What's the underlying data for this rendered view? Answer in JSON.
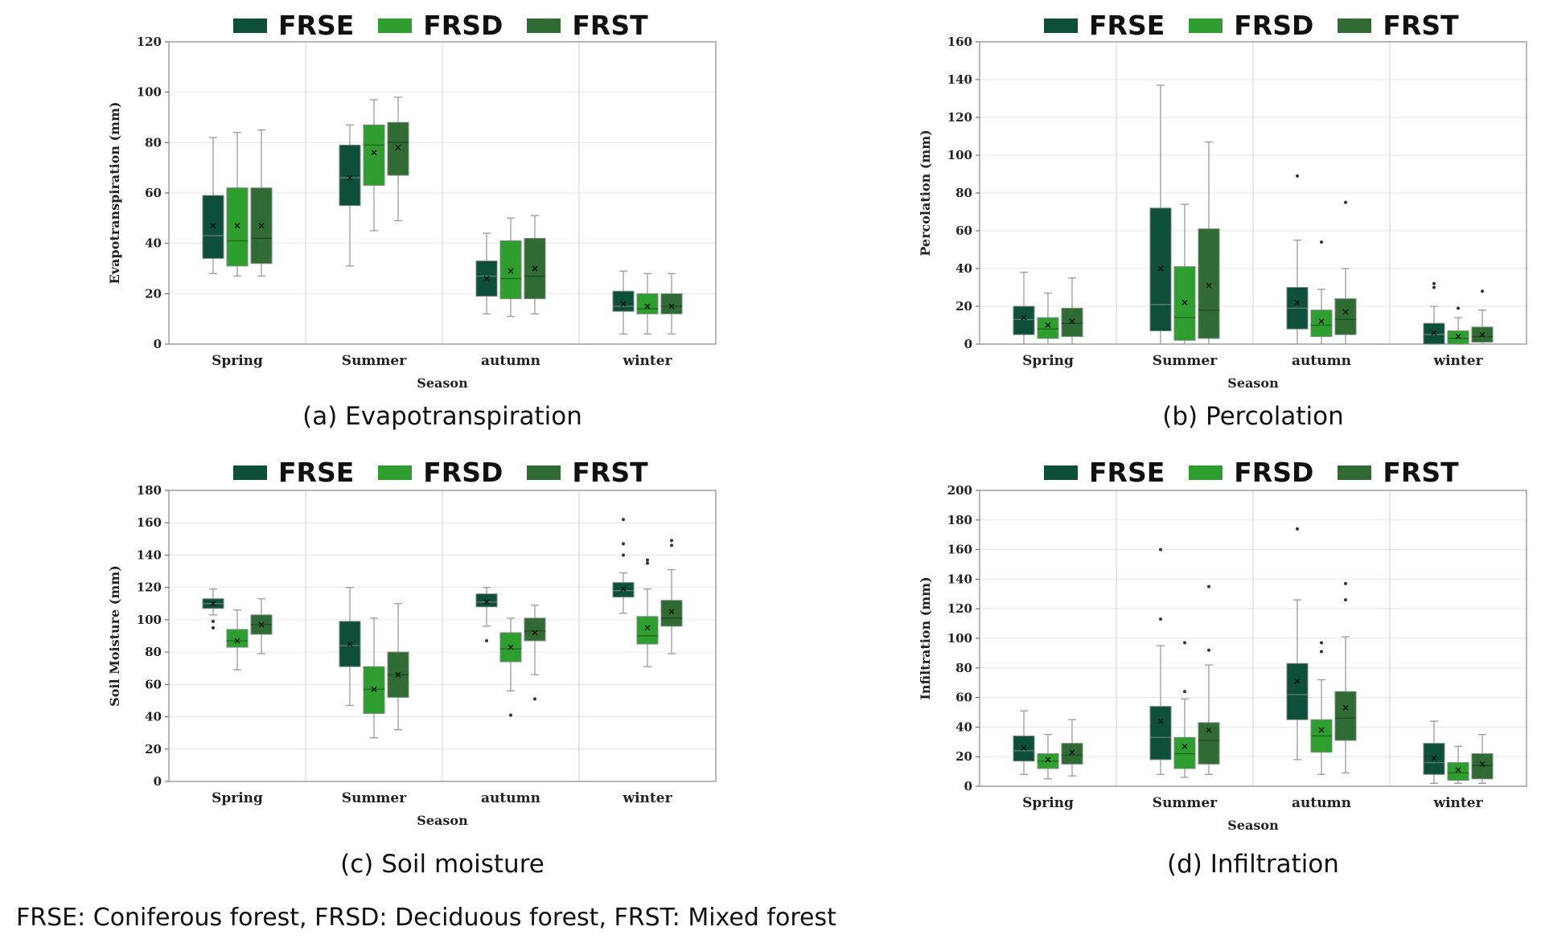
{
  "chart_data": [
    {
      "id": "a",
      "type": "box",
      "caption": "(a) Evapotranspiration",
      "ylabel": "Evapotranspiration (mm)",
      "xlabel": "Season",
      "ylim": [
        0,
        120
      ],
      "yticks": [
        0,
        20,
        40,
        60,
        80,
        100,
        120
      ],
      "categories": [
        "Spring",
        "Summer",
        "autumn",
        "winter"
      ],
      "series": [
        {
          "name": "FRSE",
          "boxes": [
            {
              "min": 28,
              "q1": 34,
              "median": 43,
              "q3": 59,
              "max": 82,
              "mean": 47,
              "outliers": []
            },
            {
              "min": 31,
              "q1": 55,
              "median": 66,
              "q3": 79,
              "max": 87,
              "mean": 66,
              "outliers": []
            },
            {
              "min": 12,
              "q1": 19,
              "median": 27,
              "q3": 33,
              "max": 44,
              "mean": 26,
              "outliers": []
            },
            {
              "min": 4,
              "q1": 13,
              "median": 15,
              "q3": 21,
              "max": 29,
              "mean": 16,
              "outliers": []
            }
          ]
        },
        {
          "name": "FRSD",
          "boxes": [
            {
              "min": 27,
              "q1": 31,
              "median": 41,
              "q3": 62,
              "max": 84,
              "mean": 47,
              "outliers": []
            },
            {
              "min": 45,
              "q1": 63,
              "median": 79,
              "q3": 87,
              "max": 97,
              "mean": 76,
              "outliers": []
            },
            {
              "min": 11,
              "q1": 18,
              "median": 26,
              "q3": 41,
              "max": 50,
              "mean": 29,
              "outliers": []
            },
            {
              "min": 4,
              "q1": 12,
              "median": 14,
              "q3": 20,
              "max": 28,
              "mean": 15,
              "outliers": []
            }
          ]
        },
        {
          "name": "FRST",
          "boxes": [
            {
              "min": 27,
              "q1": 32,
              "median": 42,
              "q3": 62,
              "max": 85,
              "mean": 47,
              "outliers": []
            },
            {
              "min": 49,
              "q1": 67,
              "median": 80,
              "q3": 88,
              "max": 98,
              "mean": 78,
              "outliers": []
            },
            {
              "min": 12,
              "q1": 18,
              "median": 27,
              "q3": 42,
              "max": 51,
              "mean": 30,
              "outliers": []
            },
            {
              "min": 4,
              "q1": 12,
              "median": 15,
              "q3": 20,
              "max": 28,
              "mean": 15,
              "outliers": []
            }
          ]
        }
      ]
    },
    {
      "id": "b",
      "type": "box",
      "caption": "(b) Percolation",
      "ylabel": "Percolation (mm)",
      "xlabel": "Season",
      "ylim": [
        0,
        160
      ],
      "yticks": [
        0,
        20,
        40,
        60,
        80,
        100,
        120,
        140,
        160
      ],
      "categories": [
        "Spring",
        "Summer",
        "autumn",
        "winter"
      ],
      "series": [
        {
          "name": "FRSE",
          "boxes": [
            {
              "min": 0,
              "q1": 5,
              "median": 13,
              "q3": 20,
              "max": 38,
              "mean": 14,
              "outliers": []
            },
            {
              "min": 0,
              "q1": 7,
              "median": 21,
              "q3": 72,
              "max": 137,
              "mean": 40,
              "outliers": []
            },
            {
              "min": 0,
              "q1": 8,
              "median": 19,
              "q3": 30,
              "max": 55,
              "mean": 22,
              "outliers": [
                89
              ]
            },
            {
              "min": 0,
              "q1": 0,
              "median": 5,
              "q3": 11,
              "max": 20,
              "mean": 6,
              "outliers": [
                30,
                32
              ]
            }
          ]
        },
        {
          "name": "FRSD",
          "boxes": [
            {
              "min": 0,
              "q1": 3,
              "median": 8,
              "q3": 14,
              "max": 27,
              "mean": 10,
              "outliers": []
            },
            {
              "min": 0,
              "q1": 2,
              "median": 14,
              "q3": 41,
              "max": 74,
              "mean": 22,
              "outliers": []
            },
            {
              "min": 0,
              "q1": 4,
              "median": 10,
              "q3": 18,
              "max": 29,
              "mean": 12,
              "outliers": [
                54
              ]
            },
            {
              "min": 0,
              "q1": 0,
              "median": 3,
              "q3": 7,
              "max": 14,
              "mean": 4,
              "outliers": [
                19
              ]
            }
          ]
        },
        {
          "name": "FRST",
          "boxes": [
            {
              "min": 0,
              "q1": 4,
              "median": 11,
              "q3": 19,
              "max": 35,
              "mean": 12,
              "outliers": []
            },
            {
              "min": 0,
              "q1": 3,
              "median": 18,
              "q3": 61,
              "max": 107,
              "mean": 31,
              "outliers": []
            },
            {
              "min": 0,
              "q1": 5,
              "median": 13,
              "q3": 24,
              "max": 40,
              "mean": 17,
              "outliers": [
                75
              ]
            },
            {
              "min": 0,
              "q1": 1,
              "median": 4,
              "q3": 9,
              "max": 18,
              "mean": 5,
              "outliers": [
                28
              ]
            }
          ]
        }
      ]
    },
    {
      "id": "c",
      "type": "box",
      "caption": "(c) Soil moisture",
      "ylabel": "Soil Moisture (mm)",
      "xlabel": "Season",
      "ylim": [
        0,
        180
      ],
      "yticks": [
        0,
        20,
        40,
        60,
        80,
        100,
        120,
        140,
        160,
        180
      ],
      "categories": [
        "Spring",
        "Summer",
        "autumn",
        "winter"
      ],
      "series": [
        {
          "name": "FRSE",
          "boxes": [
            {
              "min": 103,
              "q1": 107,
              "median": 110,
              "q3": 113,
              "max": 119,
              "mean": 110,
              "outliers": [
                95,
                99
              ]
            },
            {
              "min": 47,
              "q1": 71,
              "median": 84,
              "q3": 99,
              "max": 120,
              "mean": 85,
              "outliers": []
            },
            {
              "min": 96,
              "q1": 108,
              "median": 111,
              "q3": 116,
              "max": 120,
              "mean": 111,
              "outliers": [
                87
              ]
            },
            {
              "min": 104,
              "q1": 114,
              "median": 118,
              "q3": 123,
              "max": 129,
              "mean": 119,
              "outliers": [
                140,
                147,
                162
              ]
            }
          ]
        },
        {
          "name": "FRSD",
          "boxes": [
            {
              "min": 69,
              "q1": 83,
              "median": 87,
              "q3": 94,
              "max": 106,
              "mean": 87,
              "outliers": []
            },
            {
              "min": 27,
              "q1": 42,
              "median": 57,
              "q3": 71,
              "max": 101,
              "mean": 57,
              "outliers": []
            },
            {
              "min": 56,
              "q1": 74,
              "median": 82,
              "q3": 92,
              "max": 101,
              "mean": 83,
              "outliers": [
                41
              ]
            },
            {
              "min": 71,
              "q1": 85,
              "median": 90,
              "q3": 102,
              "max": 119,
              "mean": 95,
              "outliers": [
                135,
                137
              ]
            }
          ]
        },
        {
          "name": "FRST",
          "boxes": [
            {
              "min": 79,
              "q1": 91,
              "median": 97,
              "q3": 103,
              "max": 113,
              "mean": 97,
              "outliers": []
            },
            {
              "min": 32,
              "q1": 52,
              "median": 66,
              "q3": 80,
              "max": 110,
              "mean": 66,
              "outliers": []
            },
            {
              "min": 66,
              "q1": 87,
              "median": 93,
              "q3": 101,
              "max": 109,
              "mean": 92,
              "outliers": [
                51
              ]
            },
            {
              "min": 79,
              "q1": 96,
              "median": 101,
              "q3": 112,
              "max": 131,
              "mean": 105,
              "outliers": [
                146,
                149
              ]
            }
          ]
        }
      ]
    },
    {
      "id": "d",
      "type": "box",
      "caption": "(d) Infiltration",
      "ylabel": "Infiltration (mm)",
      "xlabel": "Season",
      "ylim": [
        0,
        200
      ],
      "yticks": [
        0,
        20,
        40,
        60,
        80,
        100,
        120,
        140,
        160,
        180,
        200
      ],
      "categories": [
        "Spring",
        "Summer",
        "autumn",
        "winter"
      ],
      "series": [
        {
          "name": "FRSE",
          "boxes": [
            {
              "min": 8,
              "q1": 17,
              "median": 24,
              "q3": 34,
              "max": 51,
              "mean": 26,
              "outliers": []
            },
            {
              "min": 8,
              "q1": 18,
              "median": 33,
              "q3": 54,
              "max": 95,
              "mean": 44,
              "outliers": [
                113,
                160
              ]
            },
            {
              "min": 18,
              "q1": 45,
              "median": 62,
              "q3": 83,
              "max": 126,
              "mean": 71,
              "outliers": [
                174
              ]
            },
            {
              "min": 2,
              "q1": 8,
              "median": 16,
              "q3": 29,
              "max": 44,
              "mean": 19,
              "outliers": []
            }
          ]
        },
        {
          "name": "FRSD",
          "boxes": [
            {
              "min": 5,
              "q1": 12,
              "median": 17,
              "q3": 22,
              "max": 35,
              "mean": 18,
              "outliers": []
            },
            {
              "min": 6,
              "q1": 12,
              "median": 22,
              "q3": 33,
              "max": 59,
              "mean": 27,
              "outliers": [
                64,
                97
              ]
            },
            {
              "min": 8,
              "q1": 23,
              "median": 34,
              "q3": 45,
              "max": 72,
              "mean": 38,
              "outliers": [
                91,
                97
              ]
            },
            {
              "min": 2,
              "q1": 4,
              "median": 9,
              "q3": 16,
              "max": 27,
              "mean": 11,
              "outliers": []
            }
          ]
        },
        {
          "name": "FRST",
          "boxes": [
            {
              "min": 7,
              "q1": 15,
              "median": 21,
              "q3": 29,
              "max": 45,
              "mean": 23,
              "outliers": []
            },
            {
              "min": 8,
              "q1": 15,
              "median": 31,
              "q3": 43,
              "max": 82,
              "mean": 38,
              "outliers": [
                92,
                135
              ]
            },
            {
              "min": 9,
              "q1": 31,
              "median": 46,
              "q3": 64,
              "max": 101,
              "mean": 53,
              "outliers": [
                126,
                137
              ]
            },
            {
              "min": 2,
              "q1": 5,
              "median": 14,
              "q3": 22,
              "max": 35,
              "mean": 15,
              "outliers": []
            }
          ]
        }
      ]
    }
  ],
  "legend": [
    {
      "name": "FRSE",
      "color": "#0d4f3a"
    },
    {
      "name": "FRSD",
      "color": "#2e9e2e"
    },
    {
      "name": "FRST",
      "color": "#2f6b33"
    }
  ],
  "footnote": "FRSE: Coniferous forest, FRSD: Deciduous forest, FRST: Mixed forest"
}
